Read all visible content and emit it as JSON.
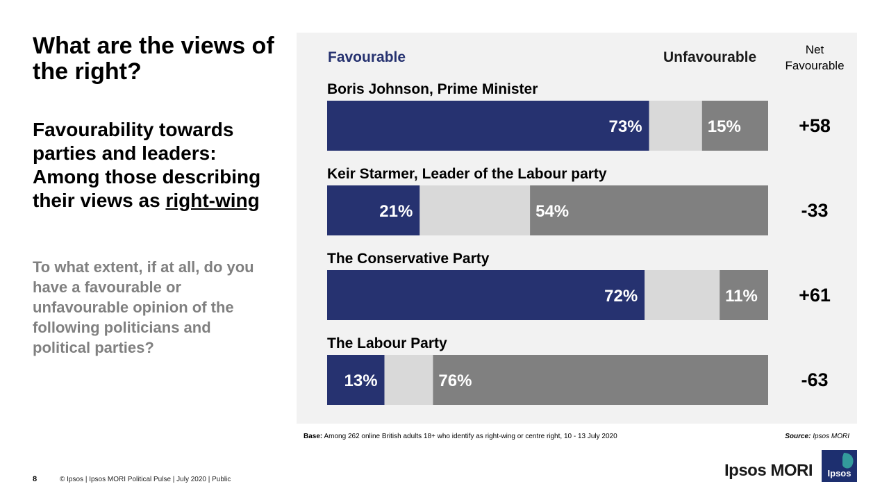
{
  "title": "What are the views of the right?",
  "subtitle_prefix": "Favourability towards parties and leaders: Among those describing their views as",
  "subtitle_emphasis": "right-wing",
  "question": "To what extent, if at all, do you have a favourable or unfavourable opinion of the following politicians and political parties?",
  "headers": {
    "favourable": "Favourable",
    "unfavourable": "Unfavourable",
    "net": "Net Favourable"
  },
  "colors": {
    "favourable": "#263270",
    "neither": "#d9d9d9",
    "unfavourable": "#808080",
    "panel": "#f2f2f2"
  },
  "chart_data": {
    "type": "bar",
    "orientation": "horizontal",
    "stacked": true,
    "xlim": [
      0,
      100
    ],
    "categories": [
      "Boris Johnson, Prime Minister",
      "Keir Starmer, Leader of the Labour party",
      "The Conservative Party",
      "The Labour Party"
    ],
    "series": [
      {
        "name": "Favourable",
        "values": [
          73,
          21,
          72,
          13
        ],
        "labels": [
          "73%",
          "21%",
          "72%",
          "13%"
        ]
      },
      {
        "name": "",
        "values": [
          12,
          25,
          17,
          11
        ],
        "labels": [
          "",
          "",
          "",
          ""
        ]
      },
      {
        "name": "Unfavourable",
        "values": [
          15,
          54,
          11,
          76
        ],
        "labels": [
          "15%",
          "54%",
          "11%",
          "76%"
        ]
      }
    ],
    "net": [
      "+58",
      "-33",
      "+61",
      "-63"
    ]
  },
  "base_label": "Base:",
  "base_text": "Among 262 online British adults 18+ who identify as right-wing or centre right, 10 - 13 July 2020",
  "source_label": "Source:",
  "source_text": "Ipsos MORI",
  "page_number": "8",
  "footer": "© Ipsos | Ipsos MORI Political Pulse | July 2020 | Public",
  "brand": "Ipsos MORI",
  "logo_text": "Ipsos"
}
